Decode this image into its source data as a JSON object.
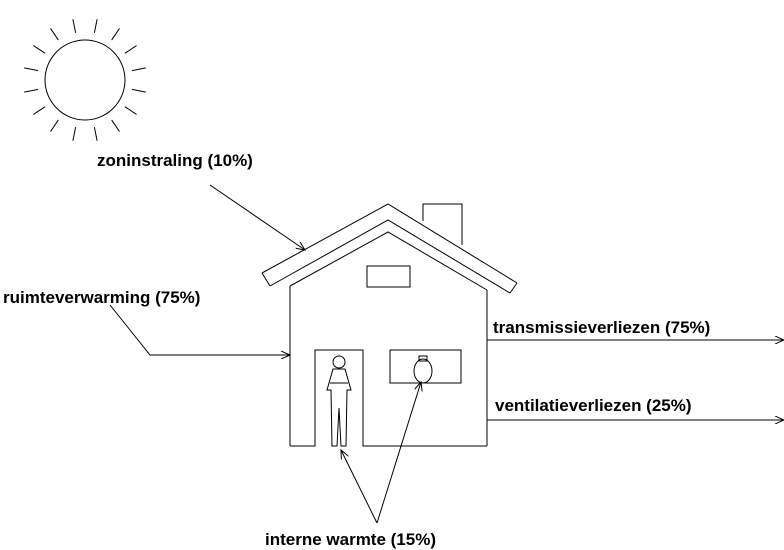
{
  "labels": {
    "sun": "zoninstraling (10%)",
    "heating": "ruimteverwarming (75%)",
    "transmission": "transmissieverliezen (75%)",
    "ventilation": "ventilatieverliezen (25%)",
    "internal": "interne warmte (15%)"
  }
}
